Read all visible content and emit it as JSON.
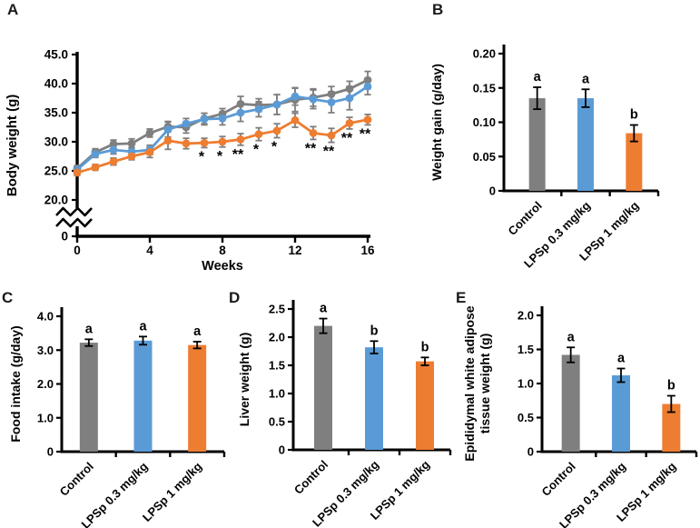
{
  "figure": {
    "background": "#ffffff",
    "palette": {
      "control": "#7F7F7F",
      "lpsp_0_3": "#5B9BD5",
      "lpsp_1": "#ED7D31",
      "line_error_bars": "#7F7F7F",
      "bar_error_bars": "#000000",
      "axis": "#000000"
    }
  },
  "panels": {
    "A": {
      "letter": "A",
      "chart_data": {
        "type": "line",
        "xlabel": "Weeks",
        "ylabel": "Body weight (g)",
        "x": [
          0,
          1,
          2,
          3,
          4,
          5,
          6,
          7,
          8,
          9,
          10,
          11,
          12,
          13,
          14,
          15,
          16
        ],
        "x_ticks": [
          0,
          4,
          8,
          12,
          16
        ],
        "x_range": [
          0,
          16
        ],
        "ylim": [
          0,
          45
        ],
        "axis_break_between": [
          0,
          20
        ],
        "y_ticks": [
          {
            "v": 45,
            "label": "45.0"
          },
          {
            "v": 40,
            "label": "40.0"
          },
          {
            "v": 35,
            "label": "35.0"
          },
          {
            "v": 30,
            "label": "30.0"
          },
          {
            "v": 25,
            "label": "25.0"
          },
          {
            "v": 20,
            "label": "20.0"
          },
          {
            "v": 0,
            "label": "0"
          }
        ],
        "series": [
          {
            "name": "Control",
            "color": "#7F7F7F",
            "values": [
              25.4,
              28.2,
              29.6,
              29.7,
              31.5,
              32.6,
              32.5,
              34.0,
              34.8,
              36.5,
              36.3,
              36.4,
              37.2,
              37.6,
              38.2,
              39.1,
              40.6
            ],
            "errors": [
              0.5,
              0.6,
              0.7,
              0.8,
              0.7,
              0.9,
              1.0,
              0.9,
              0.9,
              1.3,
              1.1,
              1.7,
              2.0,
              1.5,
              1.3,
              1.3,
              1.5
            ]
          },
          {
            "name": "LPSp 0.3 mg/kg",
            "color": "#5B9BD5",
            "values": [
              25.2,
              27.9,
              28.6,
              28.3,
              28.6,
              32.1,
              33.1,
              33.9,
              34.0,
              35.0,
              35.6,
              36.4,
              37.8,
              37.3,
              36.8,
              37.5,
              39.5
            ],
            "errors": [
              0.5,
              0.6,
              0.7,
              0.7,
              0.8,
              1.3,
              0.9,
              1.0,
              1.1,
              1.5,
              1.3,
              1.7,
              1.5,
              1.6,
              1.8,
              2.0,
              1.4
            ]
          },
          {
            "name": "LPSp 1 mg/kg",
            "color": "#ED7D31",
            "values": [
              24.7,
              25.6,
              26.6,
              27.5,
              28.2,
              30.2,
              29.7,
              29.8,
              30.0,
              30.4,
              31.3,
              31.9,
              33.7,
              31.5,
              31.1,
              33.2,
              33.8
            ],
            "errors": [
              0.5,
              0.5,
              0.6,
              0.6,
              0.9,
              1.5,
              0.9,
              0.8,
              0.9,
              1.0,
              1.1,
              1.2,
              1.2,
              1.1,
              1.2,
              1.0,
              0.9
            ]
          }
        ],
        "significance": [
          {
            "week": 7,
            "mark": "*"
          },
          {
            "week": 8,
            "mark": "*"
          },
          {
            "week": 9,
            "mark": "**"
          },
          {
            "week": 10,
            "mark": "*"
          },
          {
            "week": 11,
            "mark": "*"
          },
          {
            "week": 13,
            "mark": "**"
          },
          {
            "week": 14,
            "mark": "**"
          },
          {
            "week": 15,
            "mark": "**"
          },
          {
            "week": 16,
            "mark": "**"
          }
        ]
      }
    },
    "B": {
      "letter": "B",
      "chart_data": {
        "type": "bar",
        "ylabel": "Weight gain (g/day)",
        "categories": [
          "Control",
          "LPSp 0.3 mg/kg",
          "LPSp 1 mg/kg"
        ],
        "values": [
          0.135,
          0.135,
          0.084
        ],
        "errors": [
          0.016,
          0.013,
          0.012
        ],
        "letters": [
          "a",
          "a",
          "b"
        ],
        "bar_colors": [
          "#7F7F7F",
          "#5B9BD5",
          "#ED7D31"
        ],
        "ylim": [
          0,
          0.2
        ],
        "y_ticks": [
          {
            "v": 0.2,
            "label": "0.20"
          },
          {
            "v": 0.15,
            "label": "0.15"
          },
          {
            "v": 0.1,
            "label": "0.10"
          },
          {
            "v": 0.05,
            "label": "0.05"
          },
          {
            "v": 0,
            "label": "0"
          }
        ]
      }
    },
    "C": {
      "letter": "C",
      "chart_data": {
        "type": "bar",
        "ylabel": "Food intake (g/day)",
        "categories": [
          "Control",
          "LPSp 0.3 mg/kg",
          "LPSp 1 mg/kg"
        ],
        "values": [
          3.22,
          3.28,
          3.15
        ],
        "errors": [
          0.1,
          0.12,
          0.1
        ],
        "letters": [
          "a",
          "a",
          "a"
        ],
        "bar_colors": [
          "#7F7F7F",
          "#5B9BD5",
          "#ED7D31"
        ],
        "ylim": [
          0,
          4.0
        ],
        "y_ticks": [
          {
            "v": 4.0,
            "label": "4.0"
          },
          {
            "v": 3.0,
            "label": "3.0"
          },
          {
            "v": 2.0,
            "label": "2.0"
          },
          {
            "v": 1.0,
            "label": "1.0"
          },
          {
            "v": 0,
            "label": "0"
          }
        ]
      }
    },
    "D": {
      "letter": "D",
      "chart_data": {
        "type": "bar",
        "ylabel": "Liver weight (g)",
        "categories": [
          "Control",
          "LPSp 0.3 mg/kg",
          "LPSp 1 mg/kg"
        ],
        "values": [
          2.2,
          1.82,
          1.57
        ],
        "errors": [
          0.13,
          0.11,
          0.07
        ],
        "letters": [
          "a",
          "b",
          "b"
        ],
        "bar_colors": [
          "#7F7F7F",
          "#5B9BD5",
          "#ED7D31"
        ],
        "ylim": [
          0,
          2.5
        ],
        "y_ticks": [
          {
            "v": 2.5,
            "label": "2.5"
          },
          {
            "v": 2.0,
            "label": "2.0"
          },
          {
            "v": 1.5,
            "label": "1.5"
          },
          {
            "v": 1.0,
            "label": "1.0"
          },
          {
            "v": 0.5,
            "label": "0.5"
          },
          {
            "v": 0,
            "label": "0"
          }
        ]
      }
    },
    "E": {
      "letter": "E",
      "chart_data": {
        "type": "bar",
        "ylabel": "Epididymal white adipose tissue weight (g)",
        "ylabel_lines": [
          "Epididymal white adipose",
          "tissue weight (g)"
        ],
        "categories": [
          "Control",
          "LPSp 0.3 mg/kg",
          "LPSp 1 mg/kg"
        ],
        "values": [
          1.42,
          1.12,
          0.7
        ],
        "errors": [
          0.11,
          0.1,
          0.12
        ],
        "letters": [
          "a",
          "a",
          "b"
        ],
        "bar_colors": [
          "#7F7F7F",
          "#5B9BD5",
          "#ED7D31"
        ],
        "ylim": [
          0,
          2.0
        ],
        "y_ticks": [
          {
            "v": 2.0,
            "label": "2.0"
          },
          {
            "v": 1.5,
            "label": "1.5"
          },
          {
            "v": 1.0,
            "label": "1.0"
          },
          {
            "v": 0.5,
            "label": "0.5"
          },
          {
            "v": 0,
            "label": "0"
          }
        ]
      }
    }
  }
}
